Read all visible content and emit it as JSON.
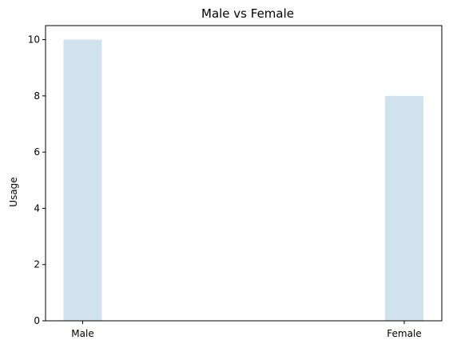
{
  "chart_data": {
    "type": "bar",
    "title": "Male vs Female",
    "xlabel": "",
    "ylabel": "Usage",
    "categories": [
      "Male",
      "Female"
    ],
    "values": [
      10,
      8
    ],
    "ylim": [
      0,
      10.5
    ],
    "yticks": [
      0,
      2,
      4,
      6,
      8,
      10
    ],
    "grid": false,
    "bar_color": "#d0e2ee"
  }
}
